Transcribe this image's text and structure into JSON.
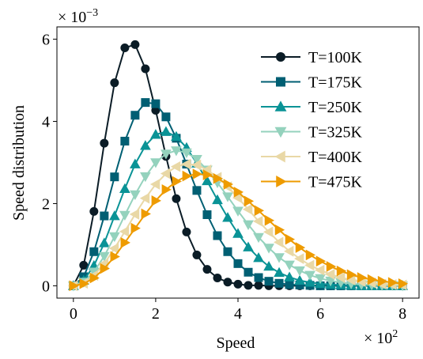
{
  "chart_data": {
    "type": "line",
    "xlabel": "Speed",
    "ylabel": "Speed distribution",
    "x_multiplier": {
      "base": "× 10",
      "exponent": "2"
    },
    "y_multiplier": {
      "base": "× 10",
      "exponent": "−3"
    },
    "x": [
      0,
      0.25,
      0.5,
      0.75,
      1,
      1.25,
      1.5,
      1.75,
      2,
      2.25,
      2.5,
      2.75,
      3,
      3.25,
      3.5,
      3.75,
      4,
      4.25,
      4.5,
      4.75,
      5,
      5.25,
      5.5,
      5.75,
      6,
      6.25,
      6.5,
      6.75,
      7,
      7.25,
      7.5,
      7.75,
      8
    ],
    "series": [
      {
        "name": "T=100K",
        "color": "#0b1c26",
        "marker": "circle",
        "values": [
          0,
          0.5,
          1.81,
          3.47,
          4.94,
          5.79,
          5.87,
          5.28,
          4.27,
          3.15,
          2.12,
          1.31,
          0.75,
          0.4,
          0.19,
          0.09,
          0.04,
          0.01,
          0.01,
          0,
          0,
          0,
          0,
          0,
          0,
          0,
          0,
          0,
          0,
          0,
          0,
          0,
          0
        ]
      },
      {
        "name": "T=175K",
        "color": "#005f73",
        "marker": "square",
        "values": [
          0,
          0.22,
          0.83,
          1.7,
          2.65,
          3.52,
          4.15,
          4.46,
          4.43,
          4.11,
          3.59,
          2.96,
          2.32,
          1.73,
          1.22,
          0.83,
          0.54,
          0.33,
          0.2,
          0.11,
          0.06,
          0.03,
          0.02,
          0.01,
          0,
          0,
          0,
          0,
          0,
          0,
          0,
          0,
          0
        ]
      },
      {
        "name": "T=250K",
        "color": "#0a9396",
        "marker": "triangle-up",
        "values": [
          0,
          0.13,
          0.49,
          1.04,
          1.7,
          2.36,
          2.96,
          3.41,
          3.68,
          3.75,
          3.63,
          3.36,
          2.98,
          2.55,
          2.09,
          1.66,
          1.27,
          0.94,
          0.68,
          0.47,
          0.32,
          0.21,
          0.13,
          0.08,
          0.05,
          0.03,
          0.02,
          0.01,
          0,
          0,
          0,
          0,
          0
        ]
      },
      {
        "name": "T=325K",
        "color": "#94d2bd",
        "marker": "triangle-down",
        "values": [
          0,
          0.09,
          0.34,
          0.72,
          1.2,
          1.72,
          2.22,
          2.66,
          3.0,
          3.21,
          3.29,
          3.24,
          3.08,
          2.82,
          2.51,
          2.17,
          1.82,
          1.49,
          1.18,
          0.92,
          0.69,
          0.51,
          0.37,
          0.26,
          0.18,
          0.12,
          0.08,
          0.05,
          0.03,
          0.02,
          0.01,
          0.01,
          0
        ]
      },
      {
        "name": "T=400K",
        "color": "#e9d8a6",
        "marker": "triangle-left",
        "values": [
          0,
          0.06,
          0.25,
          0.54,
          0.91,
          1.32,
          1.74,
          2.13,
          2.47,
          2.73,
          2.9,
          2.96,
          2.94,
          2.82,
          2.64,
          2.41,
          2.14,
          1.86,
          1.57,
          1.31,
          1.06,
          0.84,
          0.66,
          0.5,
          0.38,
          0.28,
          0.2,
          0.14,
          0.1,
          0.07,
          0.04,
          0.03,
          0.02
        ]
      },
      {
        "name": "T=475K",
        "color": "#ee9b00",
        "marker": "triangle-right",
        "values": [
          0,
          0.05,
          0.19,
          0.42,
          0.71,
          1.05,
          1.4,
          1.75,
          2.07,
          2.34,
          2.54,
          2.67,
          2.72,
          2.7,
          2.61,
          2.47,
          2.28,
          2.06,
          1.83,
          1.59,
          1.36,
          1.13,
          0.93,
          0.75,
          0.6,
          0.47,
          0.36,
          0.27,
          0.2,
          0.15,
          0.11,
          0.08,
          0.05
        ]
      }
    ],
    "xlim": [
      -0.4,
      8.4
    ],
    "xticks": [
      0,
      2,
      4,
      6,
      8
    ],
    "ylim": [
      -0.3,
      6.3
    ],
    "yticks": [
      0,
      2,
      4,
      6
    ],
    "grid": false,
    "legend": "upper right"
  }
}
